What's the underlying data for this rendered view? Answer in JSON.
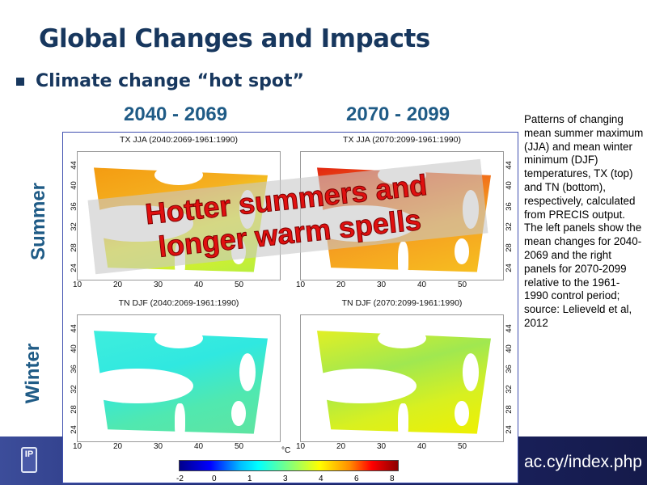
{
  "slide": {
    "title": "Global Changes and Impacts",
    "bullet": "Climate change “hot spot”"
  },
  "periods": [
    "2040 - 2069",
    "2070 - 2099"
  ],
  "seasons": [
    "Summer",
    "Winter"
  ],
  "panels": [
    {
      "title": "TX JJA (2040:2069-1961:1990)"
    },
    {
      "title": "TX JJA (2070:2099-1961:1990)"
    },
    {
      "title": "TN DJF (2040:2069-1961:1990)"
    },
    {
      "title": "TN DJF (2070:2099-1961:1990)"
    }
  ],
  "lat_ticks": [
    "44",
    "40",
    "36",
    "32",
    "28",
    "24"
  ],
  "lon_ticks": [
    "10",
    "20",
    "30",
    "40",
    "50"
  ],
  "colorbar": {
    "unit": "°C",
    "labels": [
      "-2",
      "0",
      "1",
      "3",
      "4",
      "6",
      "8"
    ]
  },
  "overlay": {
    "line1": "Hotter summers and",
    "line2": "longer warm spells"
  },
  "caption": "Patterns of changing mean summer maximum (JJA) and mean winter minimum (DJF) temperatures, TX (top) and TN (bottom), respectively, calculated from PRECIS output. The left panels show the mean changes for 2040-2069 and the right panels for 2070-2099 relative to the 1961-1990 control period; source: Lelieveld et al, 2012",
  "footer": {
    "url": "ac.cy/index.php",
    "logo": "IP"
  }
}
